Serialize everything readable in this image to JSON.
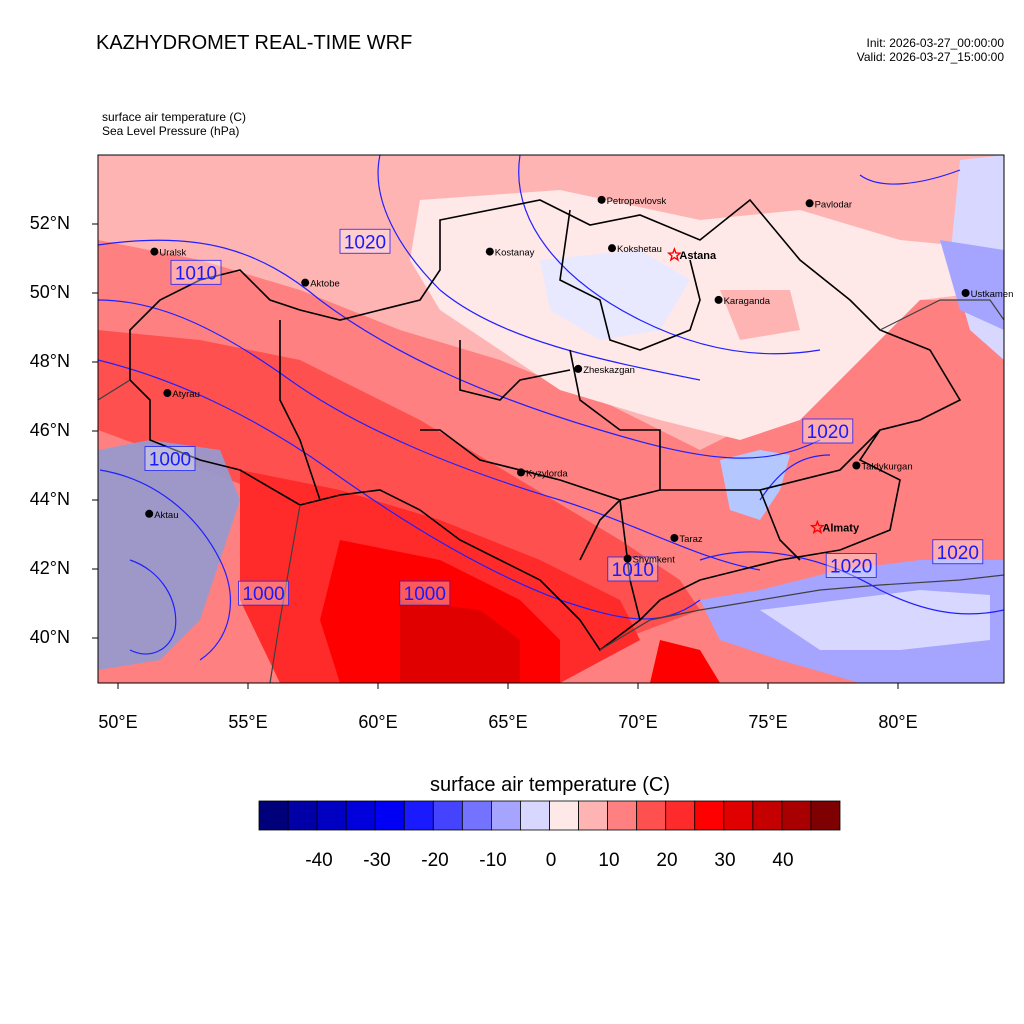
{
  "header": {
    "title": "KAZHYDROMET REAL-TIME WRF",
    "init": "Init: 2026-03-27_00:00:00",
    "valid": "Valid: 2026-03-27_15:00:00"
  },
  "fields": {
    "temperature_label": "surface air temperature   (C)",
    "pressure_label": "Sea Level Pressure   (hPa)"
  },
  "axes": {
    "lat_labels": [
      "52°N",
      "50°N",
      "48°N",
      "46°N",
      "44°N",
      "42°N",
      "40°N"
    ],
    "lon_labels": [
      "50°E",
      "55°E",
      "60°E",
      "65°E",
      "70°E",
      "75°E",
      "80°E"
    ]
  },
  "cities": [
    {
      "name": "Petropavlovsk",
      "lon": 68.6,
      "lat": 52.7,
      "type": "dot"
    },
    {
      "name": "Kokshetau",
      "lon": 69.0,
      "lat": 51.3,
      "type": "dot"
    },
    {
      "name": "Kostanay",
      "lon": 64.3,
      "lat": 51.2,
      "type": "dot"
    },
    {
      "name": "Pavlodar",
      "lon": 76.6,
      "lat": 52.6,
      "type": "dot"
    },
    {
      "name": "Uralsk",
      "lon": 51.4,
      "lat": 51.2,
      "type": "dot"
    },
    {
      "name": "Aktobe",
      "lon": 57.2,
      "lat": 50.3,
      "type": "dot"
    },
    {
      "name": "Astana",
      "lon": 71.4,
      "lat": 51.1,
      "type": "star"
    },
    {
      "name": "Ustkamen",
      "lon": 82.6,
      "lat": 50.0,
      "type": "dot"
    },
    {
      "name": "Karaganda",
      "lon": 73.1,
      "lat": 49.8,
      "type": "dot"
    },
    {
      "name": "Atyrau",
      "lon": 51.9,
      "lat": 47.1,
      "type": "dot"
    },
    {
      "name": "Zheskazgan",
      "lon": 67.7,
      "lat": 47.8,
      "type": "dot"
    },
    {
      "name": "Taldykurgan",
      "lon": 78.4,
      "lat": 45.0,
      "type": "dot"
    },
    {
      "name": "Kyzylorda",
      "lon": 65.5,
      "lat": 44.8,
      "type": "dot"
    },
    {
      "name": "Aktau",
      "lon": 51.2,
      "lat": 43.6,
      "type": "dot"
    },
    {
      "name": "Almaty",
      "lon": 76.9,
      "lat": 43.2,
      "type": "star"
    },
    {
      "name": "Taraz",
      "lon": 71.4,
      "lat": 42.9,
      "type": "dot"
    },
    {
      "name": "Shymkent",
      "lon": 69.6,
      "lat": 42.3,
      "type": "dot"
    }
  ],
  "pressure_contour_labels": [
    {
      "text": "1020",
      "lon": 59.5,
      "lat": 51.5
    },
    {
      "text": "1010",
      "lon": 53.0,
      "lat": 50.6
    },
    {
      "text": "1020",
      "lon": 77.3,
      "lat": 46.0
    },
    {
      "text": "1000",
      "lon": 52.0,
      "lat": 45.2
    },
    {
      "text": "1010",
      "lon": 69.8,
      "lat": 42.0
    },
    {
      "text": "1020",
      "lon": 78.2,
      "lat": 42.1
    },
    {
      "text": "1020",
      "lon": 82.3,
      "lat": 42.5
    },
    {
      "text": "1000",
      "lon": 55.6,
      "lat": 41.3
    },
    {
      "text": "1000",
      "lon": 61.8,
      "lat": 41.3
    }
  ],
  "colorbar": {
    "title": "surface air temperature  (C)",
    "colors": [
      "#00007a",
      "#0000a6",
      "#0000c3",
      "#0000dc",
      "#0000f5",
      "#1a1aff",
      "#4444ff",
      "#7373ff",
      "#a5a5ff",
      "#d7d7ff",
      "#ffe8e8",
      "#ffb4b4",
      "#ff8080",
      "#ff5050",
      "#ff2a2a",
      "#ff0000",
      "#e10000",
      "#c40000",
      "#a80000",
      "#7e0000"
    ],
    "ticks": [
      "-40",
      "-30",
      "-20",
      "-10",
      "0",
      "10",
      "20",
      "30",
      "40"
    ]
  }
}
